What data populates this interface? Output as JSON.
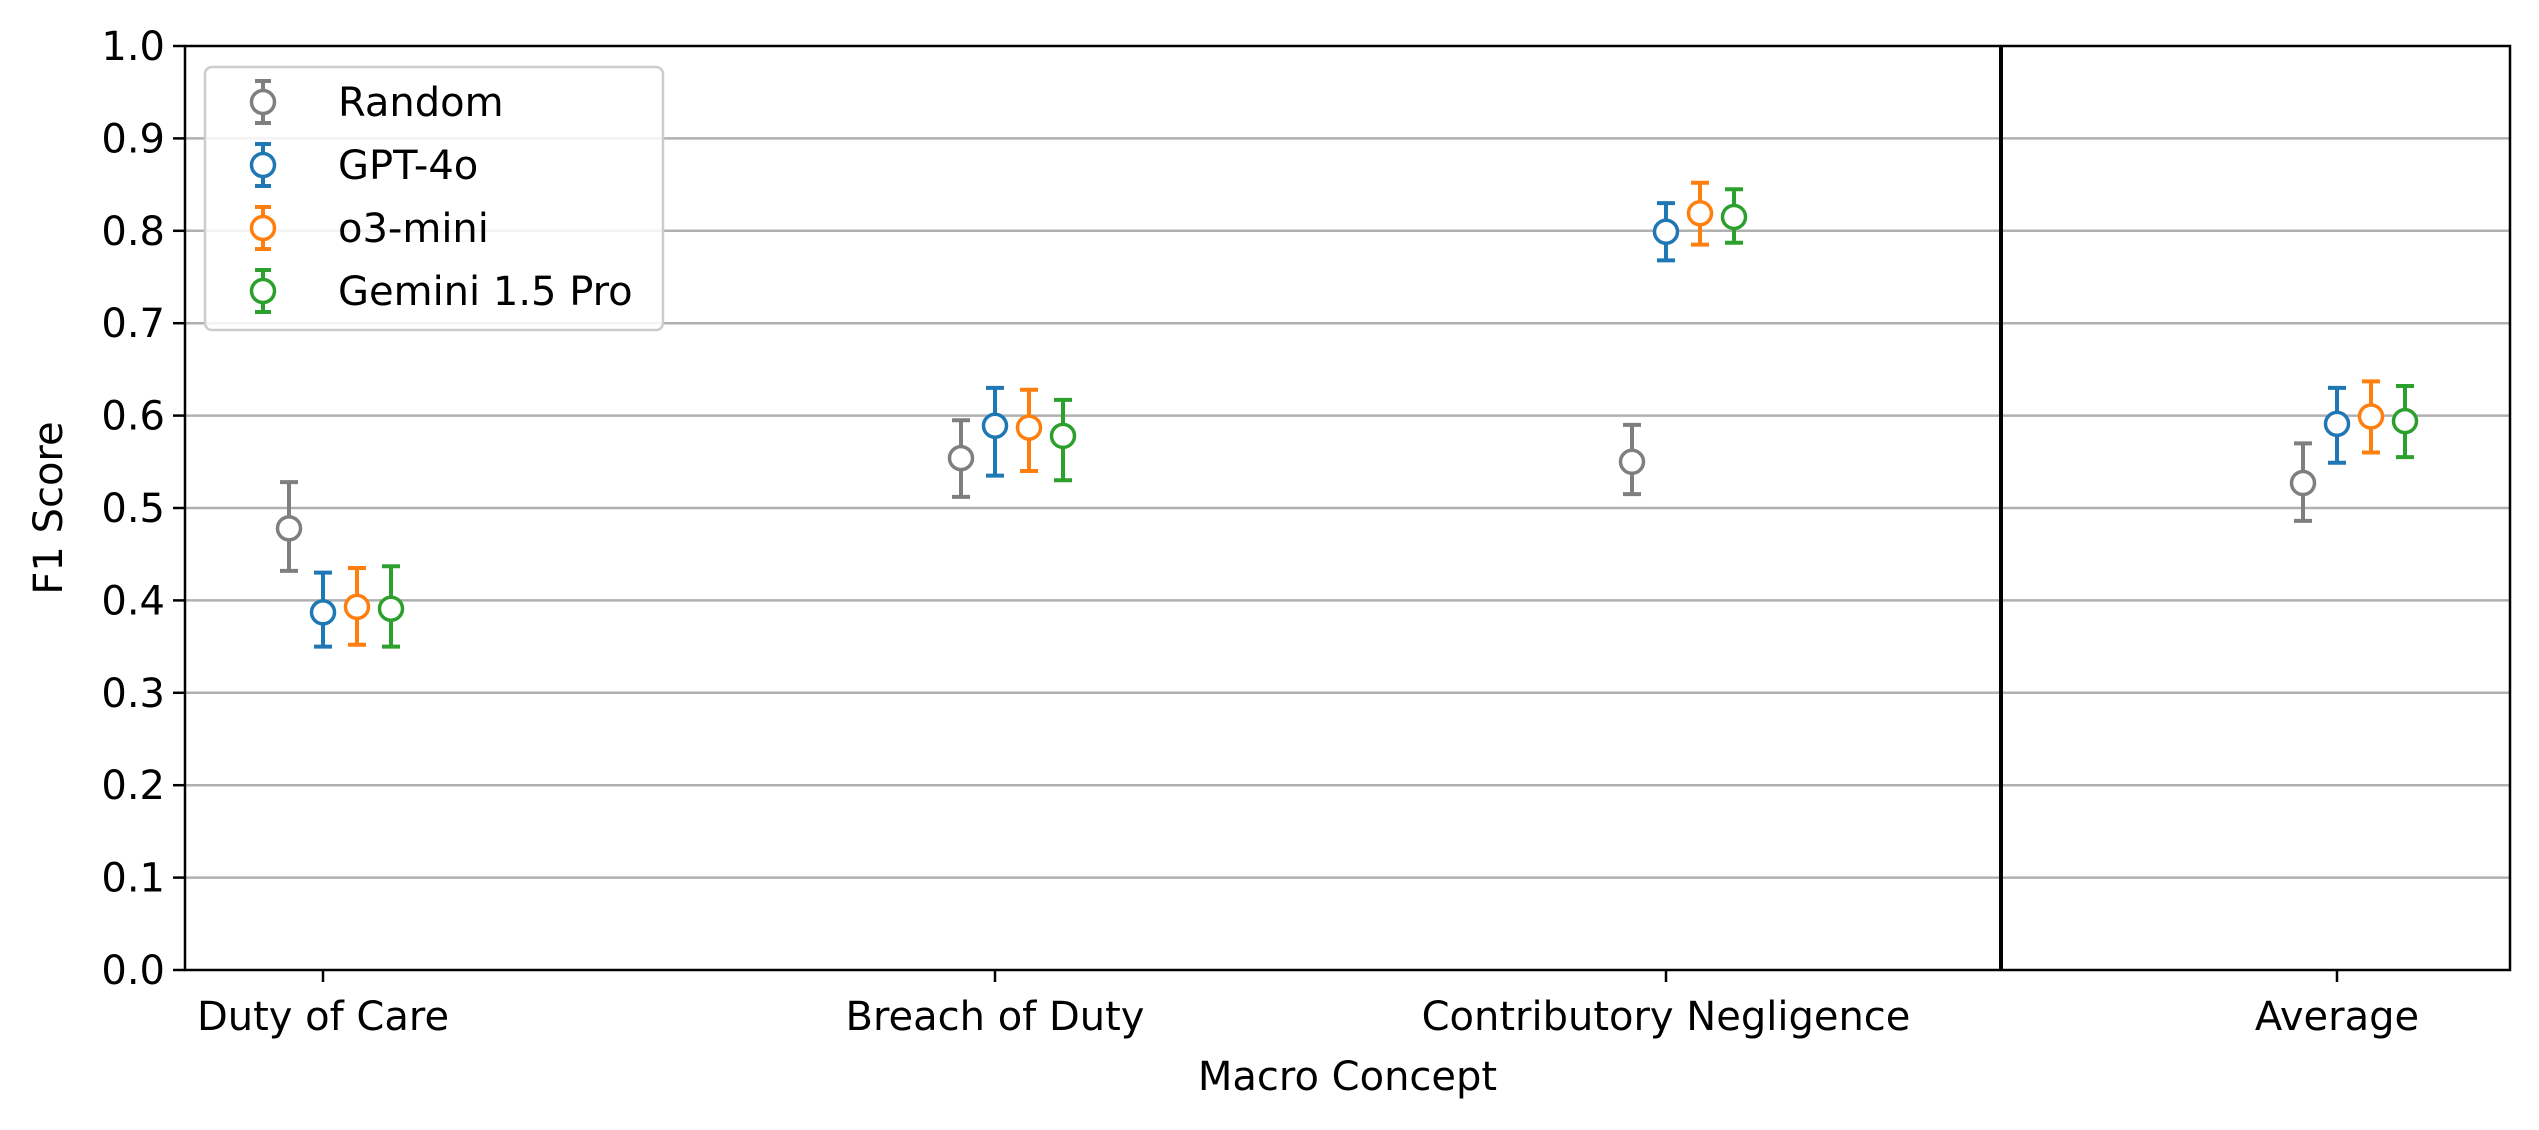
{
  "chart_data": {
    "type": "scatter",
    "title": "",
    "xlabel": "Macro Concept",
    "ylabel": "F1 Score",
    "ylim": [
      0,
      1
    ],
    "yticks": [
      "0.0",
      "0.1",
      "0.2",
      "0.3",
      "0.4",
      "0.5",
      "0.6",
      "0.7",
      "0.8",
      "0.9",
      "1.0"
    ],
    "categories": [
      "Duty of Care",
      "Breach of Duty",
      "Contributory Negligence",
      "Average"
    ],
    "grid": "horizontal",
    "legend_position": "upper-left",
    "separator_between": [
      "Contributory Negligence",
      "Average"
    ],
    "series": [
      {
        "name": "Random",
        "color": "#7f7f7f",
        "values": [
          0.478,
          0.554,
          0.55,
          0.527
        ],
        "err_low": [
          0.432,
          0.512,
          0.515,
          0.486
        ],
        "err_high": [
          0.528,
          0.595,
          0.59,
          0.57
        ]
      },
      {
        "name": "GPT-4o",
        "color": "#1f77b4",
        "values": [
          0.387,
          0.589,
          0.799,
          0.591
        ],
        "err_low": [
          0.35,
          0.535,
          0.768,
          0.549
        ],
        "err_high": [
          0.43,
          0.63,
          0.83,
          0.63
        ]
      },
      {
        "name": "o3-mini",
        "color": "#ff7f0e",
        "values": [
          0.393,
          0.587,
          0.819,
          0.599
        ],
        "err_low": [
          0.352,
          0.54,
          0.785,
          0.56
        ],
        "err_high": [
          0.435,
          0.628,
          0.852,
          0.637
        ]
      },
      {
        "name": "Gemini 1.5 Pro",
        "color": "#2ca02c",
        "values": [
          0.391,
          0.578,
          0.815,
          0.594
        ],
        "err_low": [
          0.35,
          0.53,
          0.787,
          0.555
        ],
        "err_high": [
          0.437,
          0.617,
          0.845,
          0.632
        ]
      }
    ]
  }
}
